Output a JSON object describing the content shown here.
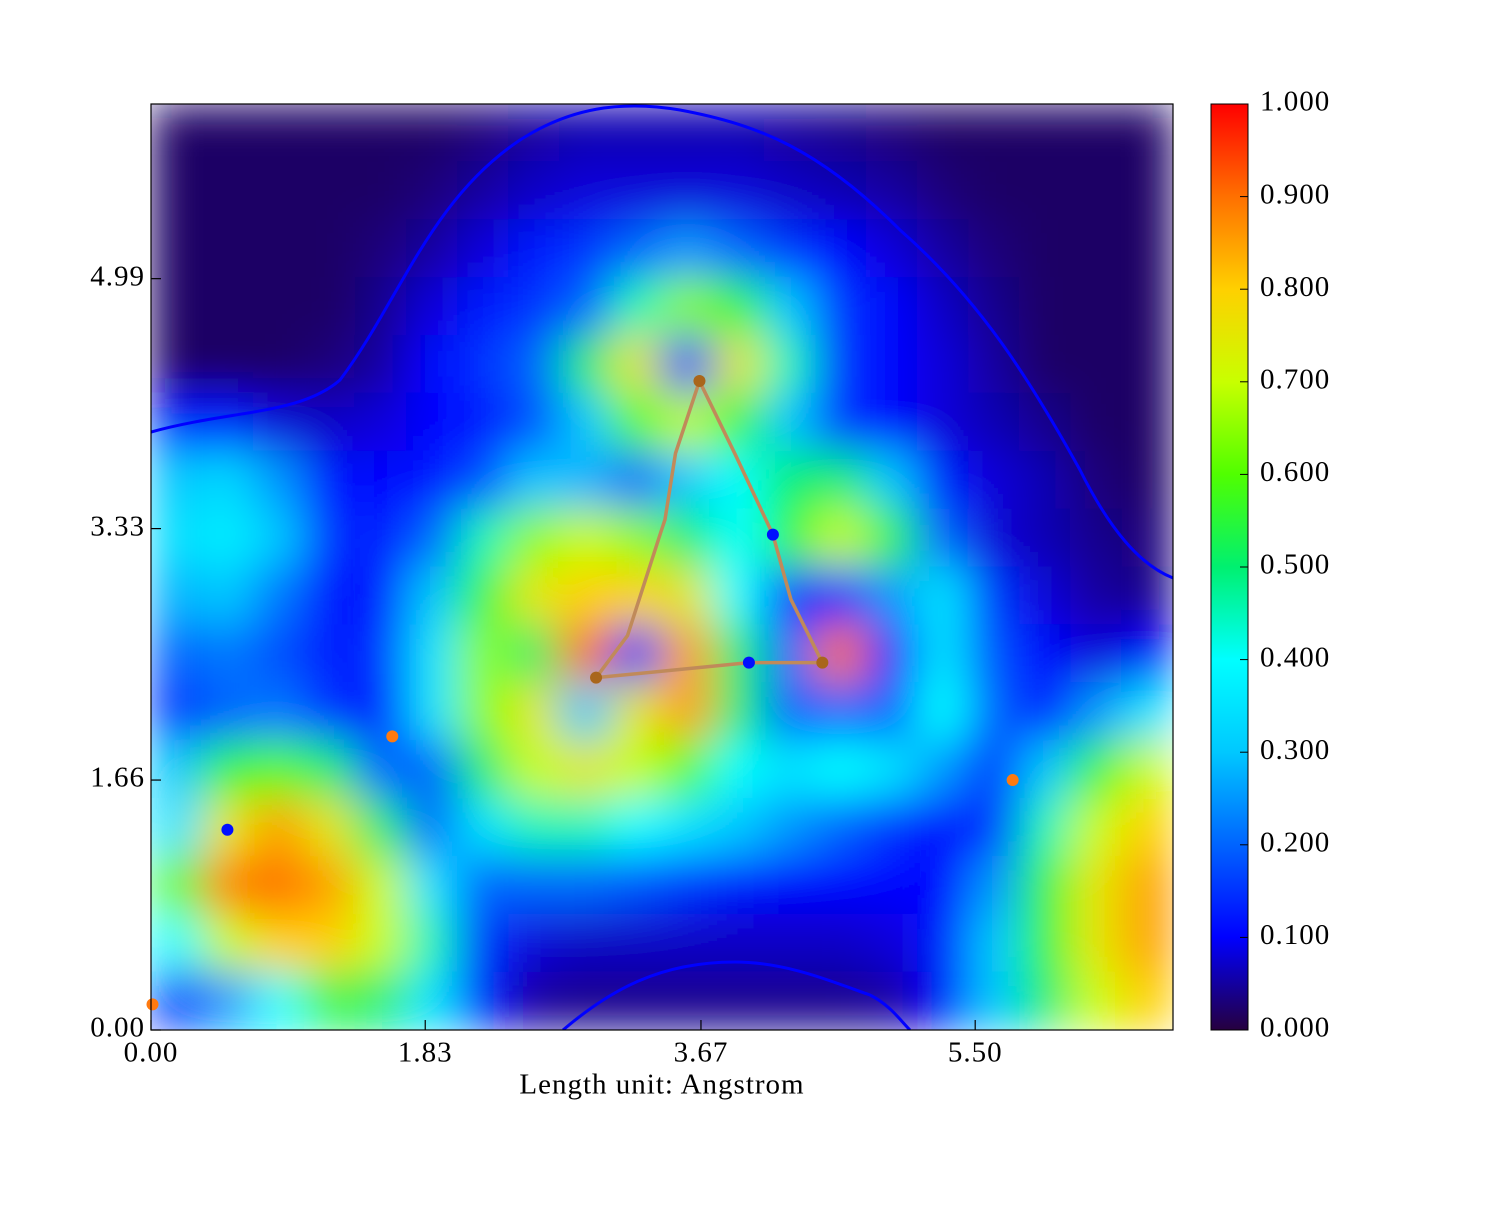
{
  "chart_data": {
    "type": "heatmap",
    "x_label": "Length unit: Angstrom",
    "xlim": [
      0,
      6.82
    ],
    "ylim": [
      0,
      6.15
    ],
    "xticks": [
      {
        "value": 0,
        "label": "0.00"
      },
      1.83,
      3.67,
      {
        "value": 5.5,
        "label": "5.50"
      }
    ],
    "yticks": [
      {
        "value": 0,
        "label": "0.00"
      },
      1.66,
      3.33,
      4.99
    ],
    "zlim": [
      0,
      1
    ],
    "zticks": [
      {
        "value": 0,
        "label": "0.000"
      },
      {
        "value": 0.1,
        "label": "0.100"
      },
      {
        "value": 0.2,
        "label": "0.200"
      },
      {
        "value": 0.3,
        "label": "0.300"
      },
      {
        "value": 0.4,
        "label": "0.400"
      },
      {
        "value": 0.5,
        "label": "0.500"
      },
      {
        "value": 0.6,
        "label": "0.600"
      },
      {
        "value": 0.7,
        "label": "0.700"
      },
      {
        "value": 0.8,
        "label": "0.800"
      },
      {
        "value": 0.9,
        "label": "0.900"
      },
      {
        "value": 1,
        "label": "1.000"
      }
    ],
    "colorscale": [
      "#26003f",
      "#0000ff",
      "#0064ff",
      "#00c8ff",
      "#00ffff",
      "#00f070",
      "#50ff00",
      "#c8ff00",
      "#ffd000",
      "#ff7000",
      "#ff0000"
    ],
    "z": [
      [
        0.02,
        0.02,
        0.02,
        0.02,
        0.02,
        0.02,
        0.03,
        0.05,
        0.06,
        0.06,
        0.06,
        0.06,
        0.05,
        0.04,
        0.03,
        0.02,
        0.02,
        0.02,
        0.02,
        0.02
      ],
      [
        0.02,
        0.02,
        0.02,
        0.02,
        0.02,
        0.03,
        0.05,
        0.07,
        0.08,
        0.08,
        0.08,
        0.08,
        0.07,
        0.06,
        0.05,
        0.03,
        0.02,
        0.02,
        0.02,
        0.02
      ],
      [
        0.02,
        0.02,
        0.02,
        0.02,
        0.03,
        0.05,
        0.08,
        0.12,
        0.15,
        0.2,
        0.25,
        0.2,
        0.15,
        0.1,
        0.08,
        0.05,
        0.03,
        0.02,
        0.02,
        0.02
      ],
      [
        0.02,
        0.02,
        0.02,
        0.02,
        0.04,
        0.08,
        0.12,
        0.15,
        0.2,
        0.45,
        0.65,
        0.55,
        0.3,
        0.15,
        0.1,
        0.07,
        0.04,
        0.02,
        0.02,
        0.02
      ],
      [
        0.02,
        0.02,
        0.02,
        0.03,
        0.05,
        0.1,
        0.15,
        0.2,
        0.5,
        0.75,
        0.15,
        0.75,
        0.45,
        0.15,
        0.1,
        0.08,
        0.05,
        0.02,
        0.02,
        0.02
      ],
      [
        0.12,
        0.12,
        0.08,
        0.07,
        0.08,
        0.1,
        0.12,
        0.18,
        0.3,
        0.6,
        0.7,
        0.55,
        0.3,
        0.15,
        0.1,
        0.08,
        0.06,
        0.04,
        0.02,
        0.02
      ],
      [
        0.3,
        0.33,
        0.25,
        0.12,
        0.1,
        0.12,
        0.18,
        0.3,
        0.28,
        0.2,
        0.3,
        0.4,
        0.5,
        0.5,
        0.3,
        0.12,
        0.08,
        0.06,
        0.03,
        0.02
      ],
      [
        0.34,
        0.37,
        0.3,
        0.15,
        0.12,
        0.2,
        0.45,
        0.65,
        0.7,
        0.65,
        0.5,
        0.4,
        0.55,
        0.7,
        0.55,
        0.2,
        0.08,
        0.06,
        0.04,
        0.03
      ],
      [
        0.28,
        0.3,
        0.22,
        0.12,
        0.12,
        0.3,
        0.55,
        0.75,
        0.8,
        0.8,
        0.75,
        0.4,
        0.15,
        0.12,
        0.25,
        0.35,
        0.15,
        0.08,
        0.05,
        0.04
      ],
      [
        0.2,
        0.22,
        0.18,
        0.12,
        0.15,
        0.35,
        0.65,
        0.5,
        0.9,
        0.15,
        0.85,
        0.5,
        0.2,
        0.9,
        0.12,
        0.35,
        0.18,
        0.1,
        0.08,
        0.1
      ],
      [
        0.15,
        0.2,
        0.22,
        0.15,
        0.12,
        0.35,
        0.65,
        0.75,
        0.3,
        0.75,
        0.85,
        0.5,
        0.2,
        0.2,
        0.2,
        0.4,
        0.2,
        0.12,
        0.25,
        0.35
      ],
      [
        0.3,
        0.55,
        0.6,
        0.5,
        0.2,
        0.2,
        0.5,
        0.7,
        0.75,
        0.7,
        0.6,
        0.4,
        0.35,
        0.4,
        0.35,
        0.25,
        0.15,
        0.3,
        0.55,
        0.7
      ],
      [
        0.35,
        0.75,
        0.85,
        0.75,
        0.5,
        0.2,
        0.35,
        0.45,
        0.45,
        0.4,
        0.35,
        0.3,
        0.25,
        0.2,
        0.15,
        0.1,
        0.15,
        0.45,
        0.7,
        0.8
      ],
      [
        0.6,
        0.88,
        0.9,
        0.85,
        0.7,
        0.35,
        0.2,
        0.2,
        0.2,
        0.18,
        0.15,
        0.12,
        0.1,
        0.1,
        0.1,
        0.1,
        0.25,
        0.55,
        0.75,
        0.85
      ],
      [
        0.4,
        0.7,
        0.8,
        0.8,
        0.7,
        0.45,
        0.15,
        0.08,
        0.07,
        0.07,
        0.07,
        0.07,
        0.07,
        0.07,
        0.08,
        0.12,
        0.3,
        0.55,
        0.75,
        0.85
      ],
      [
        0.15,
        0.25,
        0.4,
        0.55,
        0.5,
        0.35,
        0.12,
        0.05,
        0.04,
        0.04,
        0.04,
        0.04,
        0.04,
        0.04,
        0.05,
        0.1,
        0.3,
        0.5,
        0.7,
        0.8
      ]
    ],
    "paths": [
      {
        "color": "#c08a5a",
        "x": [
          3.66,
          3.5,
          3.43,
          3.4,
          3.18,
          2.97
        ],
        "y": [
          4.31,
          3.83,
          3.39,
          3.3,
          2.62,
          2.34
        ]
      },
      {
        "color": "#c08a5a",
        "x": [
          3.66,
          3.9,
          4.15,
          4.27,
          4.48
        ],
        "y": [
          4.31,
          3.82,
          3.29,
          2.86,
          2.44
        ]
      },
      {
        "color": "#c08a5a",
        "x": [
          2.97,
          3.99,
          4.48
        ],
        "y": [
          2.34,
          2.44,
          2.44
        ]
      }
    ],
    "points": [
      {
        "color": "#0010ff",
        "x": [
          0.51,
          4.15,
          3.99
        ],
        "y": [
          1.33,
          3.29,
          2.44
        ]
      },
      {
        "color": "#ff7a10",
        "x": [
          1.61,
          5.75,
          0.01
        ],
        "y": [
          1.95,
          1.66,
          0.17
        ]
      },
      {
        "color": "#a9661c",
        "x": [
          3.66,
          2.97,
          4.48
        ],
        "y": [
          4.31,
          2.34,
          2.44
        ]
      }
    ]
  }
}
